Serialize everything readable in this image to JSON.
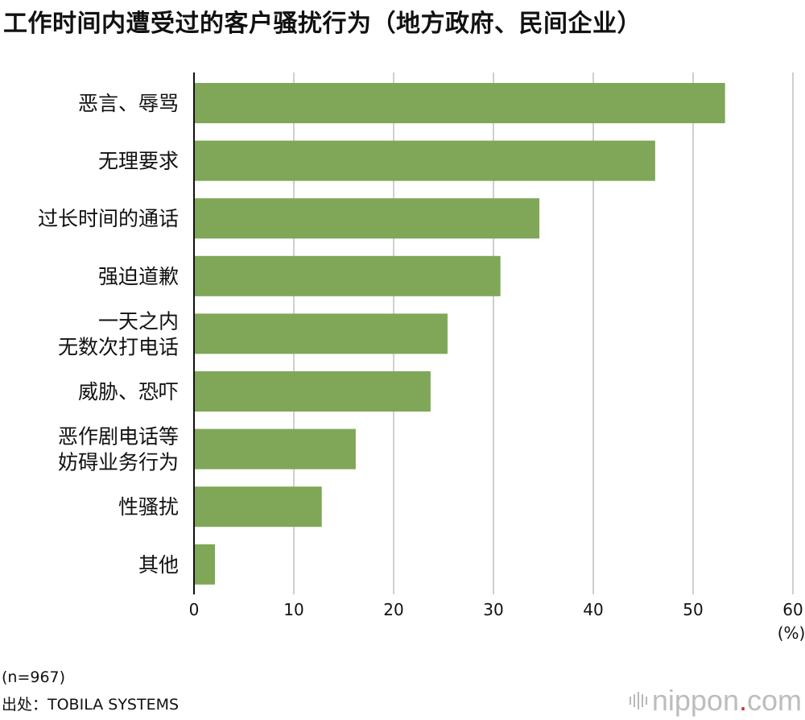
{
  "title": "工作时间内遭受过的客户骚扰行为（地方政府、民间企业）",
  "sample_note": "(n=967)",
  "source": "出处：TOBILA SYSTEMS",
  "logo": {
    "main": "nippon",
    "dot": ".",
    "suffix": "com",
    "dot_color": "#d7263d"
  },
  "unit_label": "(%)",
  "colors": {
    "bar": "#7fa757",
    "grid": "#cfcfcf",
    "axis": "#111111"
  },
  "chart_data": {
    "type": "bar",
    "orientation": "horizontal",
    "categories": [
      [
        "恶言、辱骂"
      ],
      [
        "无理要求"
      ],
      [
        "过长时间的通话"
      ],
      [
        "强迫道歉"
      ],
      [
        "一天之内",
        "无数次打电话"
      ],
      [
        "威胁、恐吓"
      ],
      [
        "恶作剧电话等",
        "妨碍业务行为"
      ],
      [
        "性骚扰"
      ],
      [
        "其他"
      ]
    ],
    "values": [
      53.2,
      46.2,
      34.6,
      30.7,
      25.4,
      23.7,
      16.2,
      12.8,
      2.1
    ],
    "xlim": [
      0,
      60
    ],
    "xticks": [
      0,
      10,
      20,
      30,
      40,
      50,
      60
    ],
    "grid": true
  }
}
